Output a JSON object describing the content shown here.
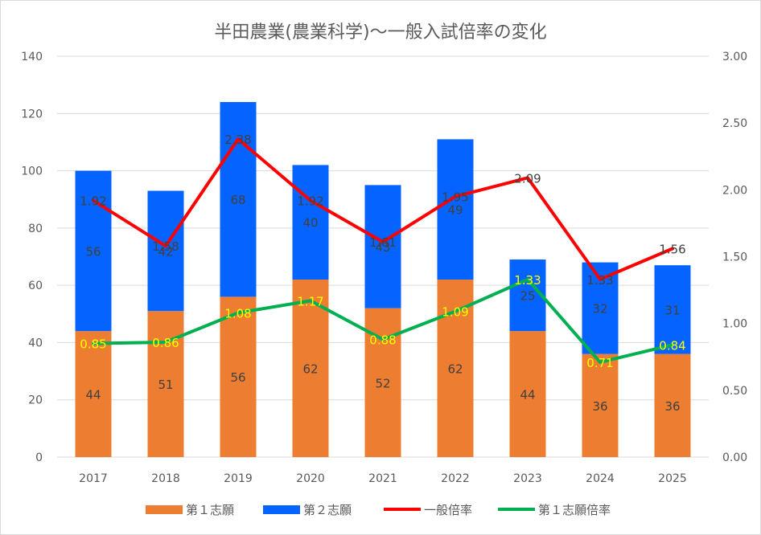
{
  "chart_data": {
    "type": "bar",
    "title": "半田農業(農業科学)～一般入試倍率の変化",
    "categories": [
      "2017",
      "2018",
      "2019",
      "2020",
      "2021",
      "2022",
      "2023",
      "2024",
      "2025"
    ],
    "series": [
      {
        "name": "第１志願",
        "kind": "bar",
        "axis": "left",
        "color": "#ED7D31",
        "values": [
          44,
          51,
          56,
          62,
          52,
          62,
          44,
          36,
          36
        ],
        "labels": [
          "44",
          "51",
          "56",
          "62",
          "52",
          "62",
          "44",
          "36",
          "36"
        ]
      },
      {
        "name": "第２志願",
        "kind": "bar",
        "axis": "left",
        "color": "#0563FF",
        "values": [
          56,
          42,
          68,
          40,
          43,
          49,
          25,
          32,
          31
        ],
        "labels": [
          "56",
          "42",
          "68",
          "40",
          "43",
          "49",
          "25",
          "32",
          "31"
        ]
      },
      {
        "name": "一般倍率",
        "kind": "line",
        "axis": "right",
        "color": "#FF0000",
        "values": [
          1.92,
          1.58,
          2.38,
          1.92,
          1.61,
          1.95,
          2.09,
          1.33,
          1.56
        ],
        "labels": [
          "1.92",
          "1.58",
          "2.38",
          "1.92",
          "1.61",
          "1.95",
          "2.09",
          "1.33",
          "1.56"
        ]
      },
      {
        "name": "第１志願倍率",
        "kind": "line",
        "axis": "right",
        "color": "#00B050",
        "values": [
          0.85,
          0.86,
          1.08,
          1.17,
          0.88,
          1.09,
          1.33,
          0.71,
          0.84
        ],
        "labels": [
          "0.85",
          "0.86",
          "1.08",
          "1.17",
          "0.88",
          "1.09",
          "1.33",
          "0.71",
          "0.84"
        ]
      }
    ],
    "y_left": {
      "min": 0,
      "max": 140,
      "step": 20,
      "ticks": [
        "0",
        "20",
        "40",
        "60",
        "80",
        "100",
        "120",
        "140"
      ]
    },
    "y_right": {
      "min": 0,
      "max": 3,
      "step": 0.5,
      "ticks": [
        "0.00",
        "0.50",
        "1.00",
        "1.50",
        "2.00",
        "2.50",
        "3.00"
      ]
    },
    "legend_position": "bottom",
    "grid": true,
    "colors": {
      "grid": "#D9D9D9",
      "text": "#595959",
      "bar_label": "#404040",
      "green_label": "#FFFF00"
    }
  }
}
